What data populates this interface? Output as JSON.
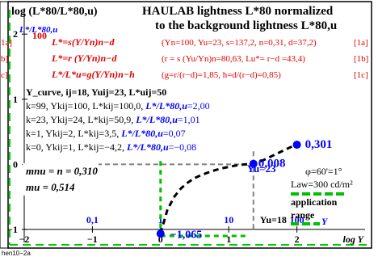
{
  "colors": {
    "black": "#000000",
    "red": "#e00000",
    "blue": "#0000ff",
    "green": "#00c000",
    "grey": "#808080",
    "frame_line": "#00d000"
  },
  "header": {
    "y_axis_title": "log (L*80/L*80,u)",
    "title_line1": "HAULAB lightness L*80 normalized",
    "title_line2": "to the background lightness L*80,u",
    "blue_label": "L*/L*80,u"
  },
  "formulas": [
    {
      "lhs": "L*=s(Y/Yn)n−d",
      "params": "(Yn=100, Yu=23, s=137,2, n=0,31, d=37,2)",
      "ref": "[1a]"
    },
    {
      "lhs": "L*=r (Y/Yn)n−d",
      "params": "(r = s (Yu/Yn)n=80,63, Lu*= r−d =43,4)",
      "ref": "[1b]"
    },
    {
      "lhs": "L*/L*u=g(Y/Yn)n−h",
      "params": "(g=r/(r−d)=1,85, h=d/(r−d)=0,85)",
      "ref": "[1c]"
    }
  ],
  "left_clip_labels": [
    "1a]",
    "b]",
    "c]"
  ],
  "curve_info": {
    "title": "Y_curve, ij=18, Yuij=23, L*uij=50",
    "rows": [
      {
        "text": "k=99, Ykij=100, L*kij=100,0, ",
        "ratio_label": "L*/L*80,u",
        "ratio_value": "=2,00"
      },
      {
        "text": "k=23, Ykij=24, L*kij=50,9, ",
        "ratio_label": "L*/L*80,u",
        "ratio_value": "=1,01"
      },
      {
        "text": "k=1, Ykij=2, L*kij=3,5, ",
        "ratio_label": "L*/L*80,u",
        "ratio_value": "=0,07"
      },
      {
        "text": "k=0, Ykij=1, L*kij=−4,2, ",
        "ratio_label": "L*/L*80,u",
        "ratio_value": "=−0,08"
      }
    ]
  },
  "params_box": {
    "mnu": "mnu = n = 0,310",
    "mu": "mu = 0,514"
  },
  "side_info": {
    "phi": "φ=60'=1°",
    "law": "Law=300 cd/m²",
    "application": "application",
    "range": "range",
    "range_y": "Y"
  },
  "annotations": {
    "val_0301": "0,301",
    "val_0008": "0,008",
    "yu_23": "Yu=23",
    "yu_18": "Yu=18",
    "val_neg1065": "−1,065"
  },
  "footer": "hen10−2a",
  "chart_data": {
    "type": "line",
    "xlabel": "log Y",
    "ylabel": "log (L*80/L*80,u)",
    "xlim": [
      -2,
      3
    ],
    "ylim": [
      -1.2,
      2.4
    ],
    "x_ticks": [
      -2,
      -1,
      0,
      1,
      2
    ],
    "y_ticks": [
      -1,
      0,
      1,
      2
    ],
    "x_ticks_labels": [
      "−2",
      "−1",
      "0",
      "1",
      "2"
    ],
    "y_ticks_labels": [
      "−1",
      "0",
      "1",
      "2"
    ],
    "top_y_tick_label": "100",
    "upper_axis_labels": [
      {
        "x": -1,
        "text": "0,1"
      },
      {
        "x": 0,
        "text": "1"
      },
      {
        "x": 1,
        "text": "10"
      },
      {
        "x": 2,
        "text": "100"
      }
    ],
    "series": [
      {
        "x": [
          0.0,
          0.1,
          0.2,
          0.3,
          0.4,
          0.5,
          0.6,
          0.7,
          0.8,
          0.9,
          1.0,
          1.1,
          1.2,
          1.3,
          1.36,
          1.5,
          1.6,
          1.7,
          1.8,
          1.9,
          2.0
        ],
        "y": [
          -1.065,
          -0.7,
          -0.5,
          -0.37,
          -0.28,
          -0.21,
          -0.165,
          -0.125,
          -0.09,
          -0.06,
          -0.04,
          -0.02,
          -0.005,
          0.003,
          0.008,
          0.06,
          0.11,
          0.16,
          0.21,
          0.26,
          0.301
        ]
      }
    ],
    "points": [
      {
        "x": 1.362,
        "y": 0.008,
        "label": "0,008"
      },
      {
        "x": 2.0,
        "y": 0.301,
        "label": "0,301"
      },
      {
        "x": 0.0,
        "y": -1.065,
        "label": "−1,065"
      }
    ],
    "guides": {
      "vertical_grey_x": 1.362,
      "horizontal_grey_y": 0.0,
      "vertical_green_x": 0.0
    }
  }
}
